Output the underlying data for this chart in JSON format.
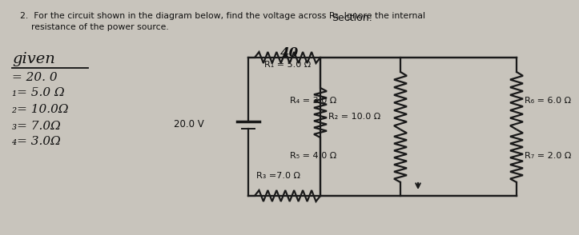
{
  "bg_color": "#c8c4bc",
  "wire_color": "#1a1a1a",
  "text_color": "#111111",
  "section_label": "Section:",
  "problem_line1": "2.  For the circuit shown in the diagram below, find the voltage across R₅. Ignore the internal",
  "problem_line2": "    resistance of the power source.",
  "handwritten_40": "40",
  "voltage": "20.0 V",
  "R1_label": "R₁ = 5.0 Ω",
  "R2_label": "R₂ = 10.0 Ω",
  "R3_label": "R₃ =7.0 Ω",
  "R4_label": "R₄ = 3.0 Ω",
  "R5_label": "R₅ = 4.0 Ω",
  "R6_label": "R₆ = 6.0 Ω",
  "R7_label": "R₇ = 2.0 Ω",
  "given_label": "given",
  "given_lines": [
    "= 20. 0",
    "₁= 5.0 Ω",
    "₂= 10.0Ω",
    "₃= 7.0Ω",
    "₄= 3.0Ω"
  ]
}
